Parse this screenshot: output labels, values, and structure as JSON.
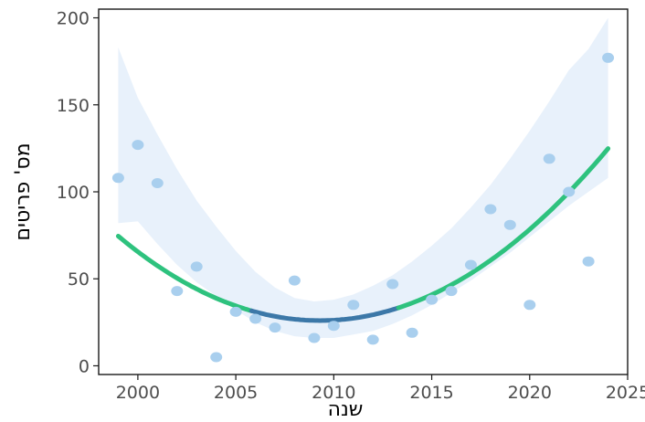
{
  "chart_data": {
    "type": "scatter",
    "title": "",
    "xlabel": "שנה",
    "ylabel": "מס' פריטים",
    "xlim": [
      1998,
      2025
    ],
    "ylim": [
      -5,
      205
    ],
    "xticks": [
      2000,
      2005,
      2010,
      2015,
      2020,
      2025
    ],
    "yticks": [
      0,
      50,
      100,
      150,
      200
    ],
    "grid": false,
    "legend": "none",
    "points": [
      {
        "x": 1999,
        "y": 108
      },
      {
        "x": 2000,
        "y": 127
      },
      {
        "x": 2001,
        "y": 105
      },
      {
        "x": 2002,
        "y": 43
      },
      {
        "x": 2003,
        "y": 57
      },
      {
        "x": 2004,
        "y": 5
      },
      {
        "x": 2005,
        "y": 31
      },
      {
        "x": 2006,
        "y": 27
      },
      {
        "x": 2007,
        "y": 22
      },
      {
        "x": 2008,
        "y": 49
      },
      {
        "x": 2009,
        "y": 16
      },
      {
        "x": 2010,
        "y": 23
      },
      {
        "x": 2011,
        "y": 35
      },
      {
        "x": 2012,
        "y": 15
      },
      {
        "x": 2013,
        "y": 47
      },
      {
        "x": 2014,
        "y": 19
      },
      {
        "x": 2015,
        "y": 38
      },
      {
        "x": 2016,
        "y": 43
      },
      {
        "x": 2017,
        "y": 58
      },
      {
        "x": 2018,
        "y": 90
      },
      {
        "x": 2019,
        "y": 81
      },
      {
        "x": 2020,
        "y": 35
      },
      {
        "x": 2021,
        "y": 119
      },
      {
        "x": 2022,
        "y": 100
      },
      {
        "x": 2023,
        "y": 60
      },
      {
        "x": 2024,
        "y": 177
      }
    ],
    "trend": {
      "type": "quadratic fit",
      "vertex_x": 2009.3,
      "vertex_y": 26,
      "curvature": 0.4575,
      "x_range": [
        1999,
        2024
      ],
      "ci_band": [
        {
          "x": 1999,
          "lo": 82,
          "hi": 183
        },
        {
          "x": 2000,
          "lo": 83,
          "hi": 154
        },
        {
          "x": 2001,
          "lo": 70,
          "hi": 133
        },
        {
          "x": 2002,
          "lo": 58,
          "hi": 113
        },
        {
          "x": 2003,
          "lo": 48,
          "hi": 95
        },
        {
          "x": 2004,
          "lo": 40,
          "hi": 80
        },
        {
          "x": 2005,
          "lo": 32,
          "hi": 66
        },
        {
          "x": 2006,
          "lo": 25,
          "hi": 54
        },
        {
          "x": 2007,
          "lo": 20,
          "hi": 45
        },
        {
          "x": 2008,
          "lo": 17,
          "hi": 39
        },
        {
          "x": 2009,
          "lo": 16,
          "hi": 37
        },
        {
          "x": 2010,
          "lo": 16,
          "hi": 38
        },
        {
          "x": 2011,
          "lo": 18,
          "hi": 41
        },
        {
          "x": 2012,
          "lo": 20,
          "hi": 46
        },
        {
          "x": 2013,
          "lo": 24,
          "hi": 52
        },
        {
          "x": 2014,
          "lo": 29,
          "hi": 60
        },
        {
          "x": 2015,
          "lo": 35,
          "hi": 69
        },
        {
          "x": 2016,
          "lo": 42,
          "hi": 79
        },
        {
          "x": 2017,
          "lo": 49,
          "hi": 91
        },
        {
          "x": 2018,
          "lo": 57,
          "hi": 104
        },
        {
          "x": 2019,
          "lo": 65,
          "hi": 119
        },
        {
          "x": 2020,
          "lo": 74,
          "hi": 135
        },
        {
          "x": 2021,
          "lo": 83,
          "hi": 152
        },
        {
          "x": 2022,
          "lo": 92,
          "hi": 170
        },
        {
          "x": 2023,
          "lo": 100,
          "hi": 182
        },
        {
          "x": 2024,
          "lo": 108,
          "hi": 200
        }
      ]
    },
    "colors": {
      "points": "#a9cfee",
      "band": "#e8f1fb",
      "trend_outer": "#2ec27e",
      "trend_inner": "#3c78a8",
      "axis": "#1a1a1a",
      "tick_text": "#4d4d4d"
    }
  }
}
